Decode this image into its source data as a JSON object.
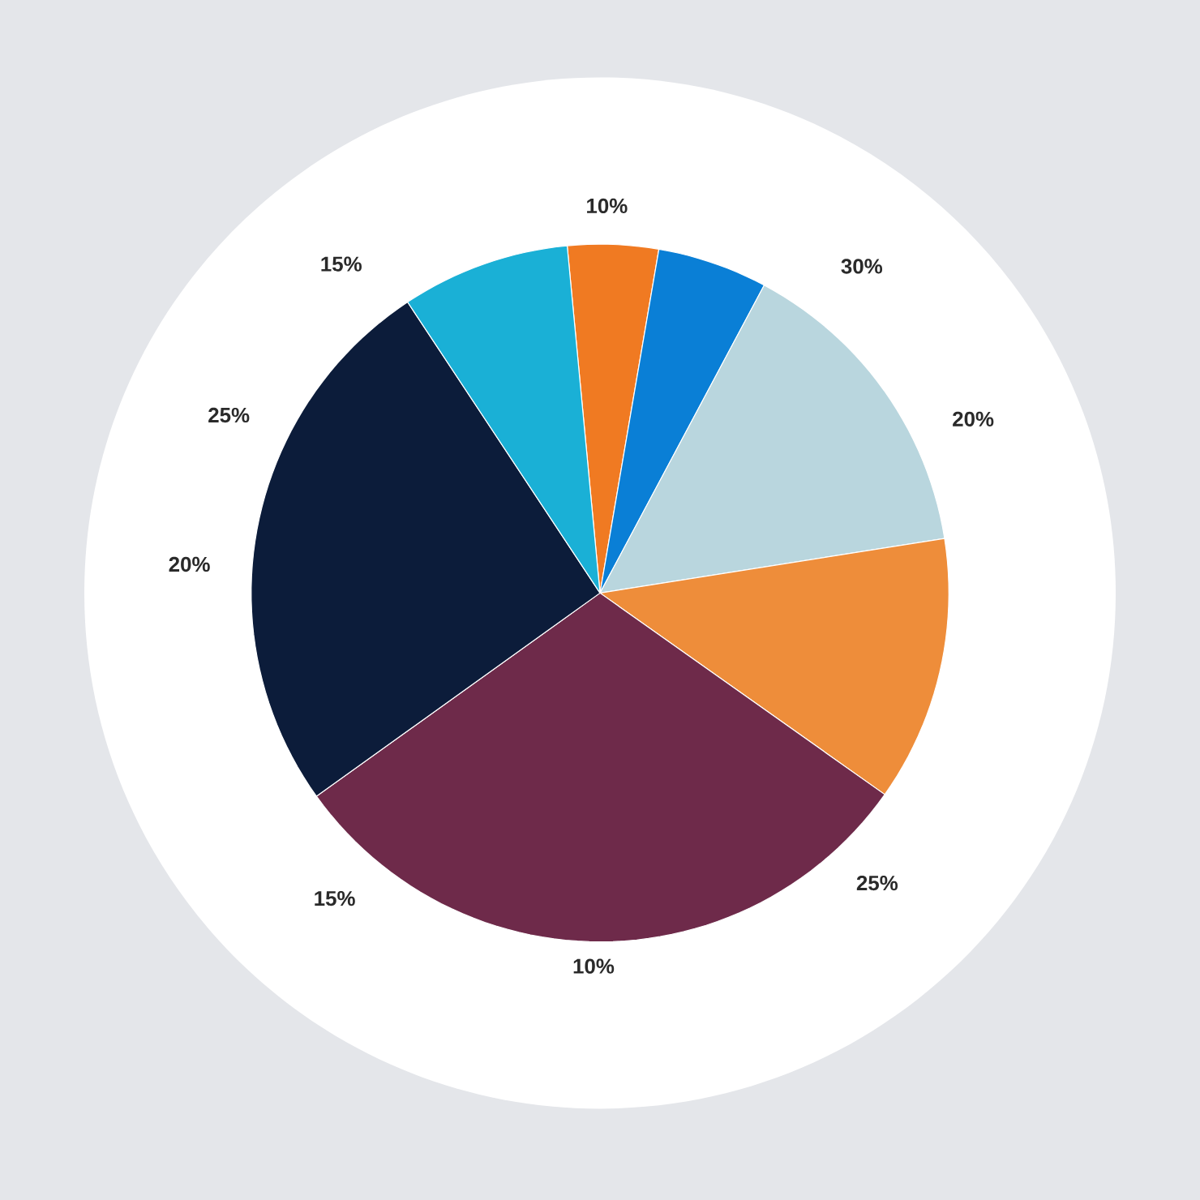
{
  "chart_data": {
    "type": "pie",
    "categories": [
      null,
      null,
      null,
      null,
      null,
      null,
      null
    ],
    "values": [
      4.2,
      5.1,
      14.7,
      12.3,
      30.3,
      25.6,
      7.8
    ],
    "colors": [
      "#f07a22",
      "#0a7fd6",
      "#b9d6de",
      "#ee8d3a",
      "#6e2a4a",
      "#0c1c3a",
      "#1ab0d6"
    ],
    "annotations": [
      "10%",
      "30%",
      "20%",
      "25%",
      "10%",
      "15%",
      "20%",
      "25%",
      "15%"
    ]
  }
}
